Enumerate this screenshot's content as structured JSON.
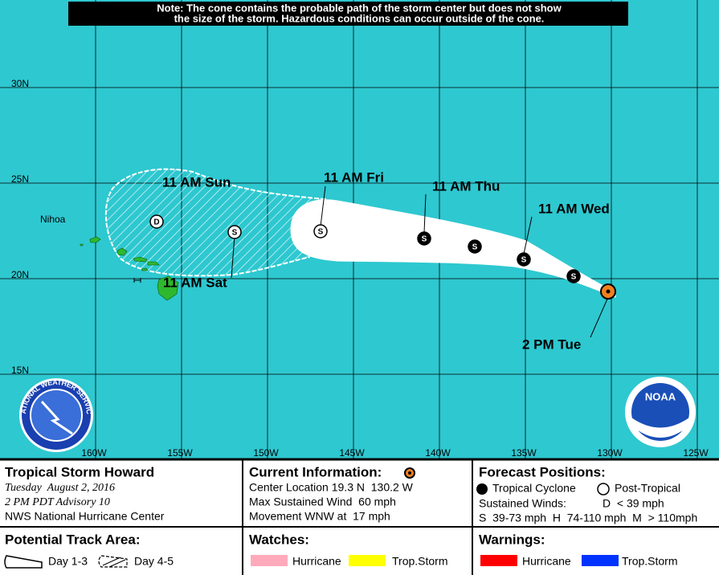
{
  "note": {
    "lines": [
      "Note: The cone contains the probable path of the storm center but does not show",
      "the size of the storm. Hazardous conditions can occur outside of the cone."
    ]
  },
  "map": {
    "lat_labels": [
      "30N",
      "25N",
      "20N",
      "15N"
    ],
    "lon_labels": [
      "160W",
      "155W",
      "150W",
      "145W",
      "140W",
      "135W",
      "130W",
      "125W"
    ],
    "place_labels": [
      "Nihoa"
    ],
    "time_labels": [
      "11 AM Sun",
      "11 AM Fri",
      "11 AM Thu",
      "11 AM Wed",
      "11 AM Sat",
      "2 PM Tue"
    ],
    "points": [
      {
        "symbol": "D"
      },
      {
        "symbol": "S"
      },
      {
        "symbol": "S"
      },
      {
        "symbol": "S"
      },
      {
        "symbol": "S"
      },
      {
        "symbol": "S"
      },
      {
        "symbol": "S"
      }
    ],
    "logos": [
      "NATIONAL WEATHER SERVICE",
      "NOAA"
    ]
  },
  "panel": {
    "storm": {
      "title": "Tropical Storm Howard",
      "date": "Tuesday  August 2, 2016",
      "advisory": "2 PM PDT Advisory 10",
      "center": "NWS National Hurricane Center"
    },
    "current": {
      "title": "Current Information:",
      "location": "Center Location 19.3 N  130.2 W",
      "wind": "Max Sustained Wind  60 mph",
      "movement": "Movement WNW at  17 mph"
    },
    "forecast": {
      "title": "Forecast Positions:",
      "tropical": "Tropical Cyclone",
      "post": "Post-Tropical",
      "winds": "Sustained Winds:",
      "d": "D  < 39 mph",
      "scale": "S  39-73 mph  H  74-110 mph  M  > 110mph"
    },
    "track": {
      "title": "Potential Track Area:",
      "day13": "Day 1-3",
      "day45": "Day 4-5"
    },
    "watches": {
      "title": "Watches:",
      "hurricane": "Hurricane",
      "storm": "Trop.Storm"
    },
    "warnings": {
      "title": "Warnings:",
      "hurricane": "Hurricane",
      "storm": "Trop.Storm"
    }
  }
}
